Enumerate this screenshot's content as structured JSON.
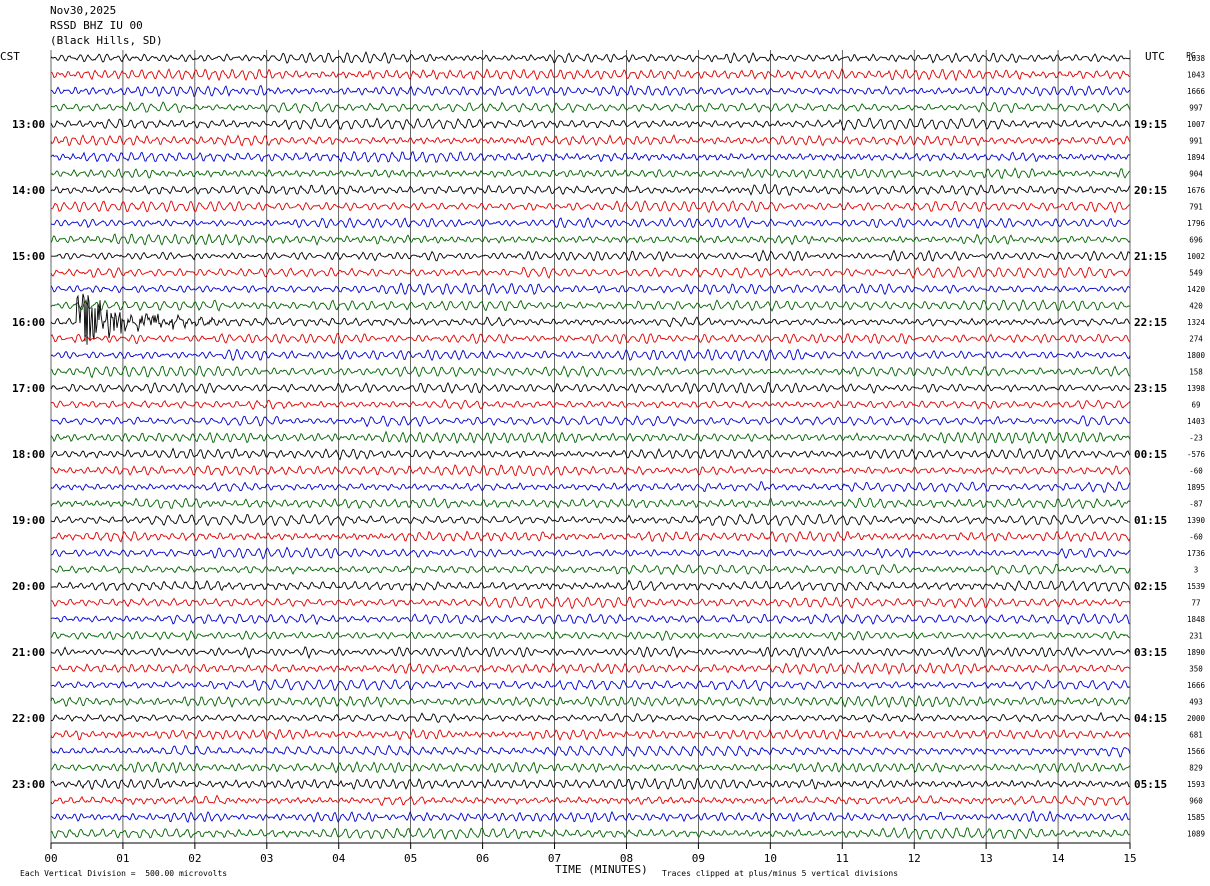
{
  "header": {
    "date": "Nov30,2025",
    "station": "RSSD BHZ IU 00",
    "location": "(Black Hills, SD)"
  },
  "left_tz": "CST",
  "right_tz": "UTC",
  "right_tag": "PG",
  "footer": {
    "xlabel": "TIME (MINUTES)",
    "scale_note": "Each Vertical Division =  500.00 microvolts",
    "clip_note": "Traces clipped at plus/minus 5 vertical divisions"
  },
  "colors": {
    "trace_cycle": [
      "#000000",
      "#e00000",
      "#0000d0",
      "#006400"
    ],
    "grid": "#000000"
  },
  "chart_data": {
    "type": "line",
    "title": "",
    "xlabel": "TIME (MINUTES)",
    "xlim": [
      0,
      15
    ],
    "x_ticks": [
      "00",
      "01",
      "02",
      "03",
      "04",
      "05",
      "06",
      "07",
      "08",
      "09",
      "10",
      "11",
      "12",
      "13",
      "14",
      "15"
    ],
    "left_hour_labels": [
      "13:00",
      "14:00",
      "15:00",
      "16:00",
      "17:00",
      "18:00",
      "19:00",
      "20:00",
      "21:00",
      "22:00",
      "23:00"
    ],
    "right_hour_labels": [
      "19:15",
      "20:15",
      "21:15",
      "22:15",
      "23:15",
      "00:15",
      "01:15",
      "02:15",
      "03:15",
      "04:15",
      "05:15"
    ],
    "right_offsets": [
      "1038",
      "1043",
      "1666",
      "997",
      "1007",
      "991",
      "1894",
      "904",
      "1676",
      "791",
      "1796",
      "696",
      "1002",
      "549",
      "1420",
      "420",
      "1324",
      "274",
      "1800",
      "158",
      "1398",
      "69",
      "1403",
      "-23",
      "-576",
      "-60",
      "1895",
      "-87",
      "1390",
      "-60",
      "1736",
      "3",
      "1539",
      "77",
      "1848",
      "231",
      "1890",
      "350",
      "1666",
      "493",
      "2000",
      "681",
      "1566",
      "829",
      "1593",
      "960",
      "1585",
      "1089"
    ],
    "trace_count": 48,
    "event": {
      "trace_index": 16,
      "start_min": 0.35,
      "end_min": 2.4,
      "peak_min": 0.6,
      "clipped": true
    },
    "grid": true
  }
}
